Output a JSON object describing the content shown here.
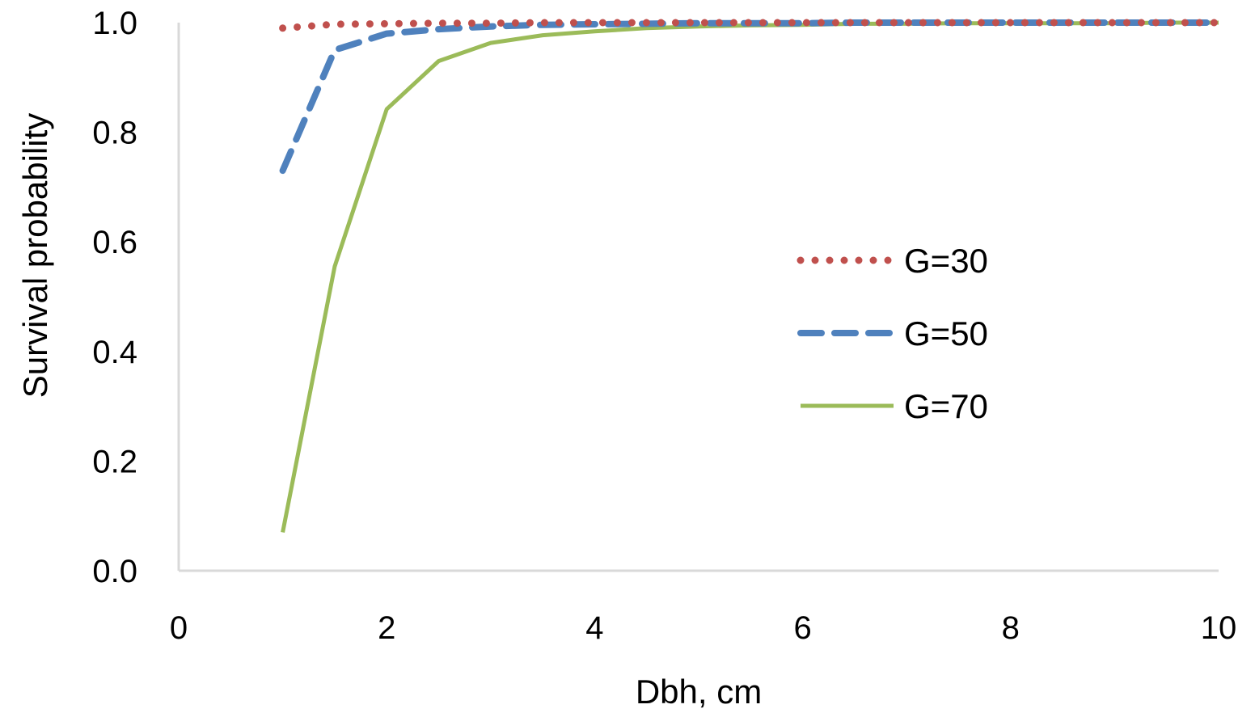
{
  "chart_data": {
    "type": "line",
    "title": "",
    "xlabel": "Dbh, cm",
    "ylabel": "Survival probability",
    "xlim": [
      0,
      10
    ],
    "ylim": [
      0,
      1
    ],
    "x_ticks": [
      "0",
      "2",
      "4",
      "6",
      "8",
      "10"
    ],
    "y_ticks": [
      "0.0",
      "0.2",
      "0.4",
      "0.6",
      "0.8",
      "1.0"
    ],
    "grid": false,
    "legend_position": "right-center",
    "series": [
      {
        "name": "G=30",
        "color": "#C0504D",
        "style": "dotted",
        "x": [
          1,
          1.5,
          2,
          2.5,
          3,
          3.5,
          4,
          4.5,
          5,
          5.5,
          6,
          6.5,
          7,
          7.5,
          8,
          8.5,
          9,
          9.5,
          10
        ],
        "y": [
          0.99,
          0.997,
          0.998,
          0.999,
          0.999,
          1.0,
          1.0,
          1.0,
          1.0,
          1.0,
          1.0,
          1.0,
          1.0,
          1.0,
          1.0,
          1.0,
          1.0,
          1.0,
          1.0
        ]
      },
      {
        "name": "G=50",
        "color": "#4F81BD",
        "style": "dashed",
        "x": [
          1,
          1.5,
          2,
          2.5,
          3,
          3.5,
          4,
          4.5,
          5,
          5.5,
          6,
          6.5,
          7,
          7.5,
          8,
          8.5,
          9,
          9.5,
          10
        ],
        "y": [
          0.73,
          0.95,
          0.98,
          0.988,
          0.993,
          0.996,
          0.997,
          0.998,
          0.999,
          0.999,
          0.999,
          1.0,
          1.0,
          1.0,
          1.0,
          1.0,
          1.0,
          1.0,
          1.0
        ]
      },
      {
        "name": "G=70",
        "color": "#9BBB59",
        "style": "solid",
        "x": [
          1,
          1.5,
          2,
          2.5,
          3,
          3.5,
          4,
          4.5,
          5,
          5.5,
          6,
          6.5,
          7,
          7.5,
          8,
          8.5,
          9,
          9.5,
          10
        ],
        "y": [
          0.07,
          0.555,
          0.842,
          0.93,
          0.963,
          0.977,
          0.984,
          0.99,
          0.993,
          0.995,
          0.996,
          0.998,
          0.998,
          0.999,
          0.999,
          0.999,
          0.999,
          1.0,
          1.0
        ]
      }
    ]
  }
}
